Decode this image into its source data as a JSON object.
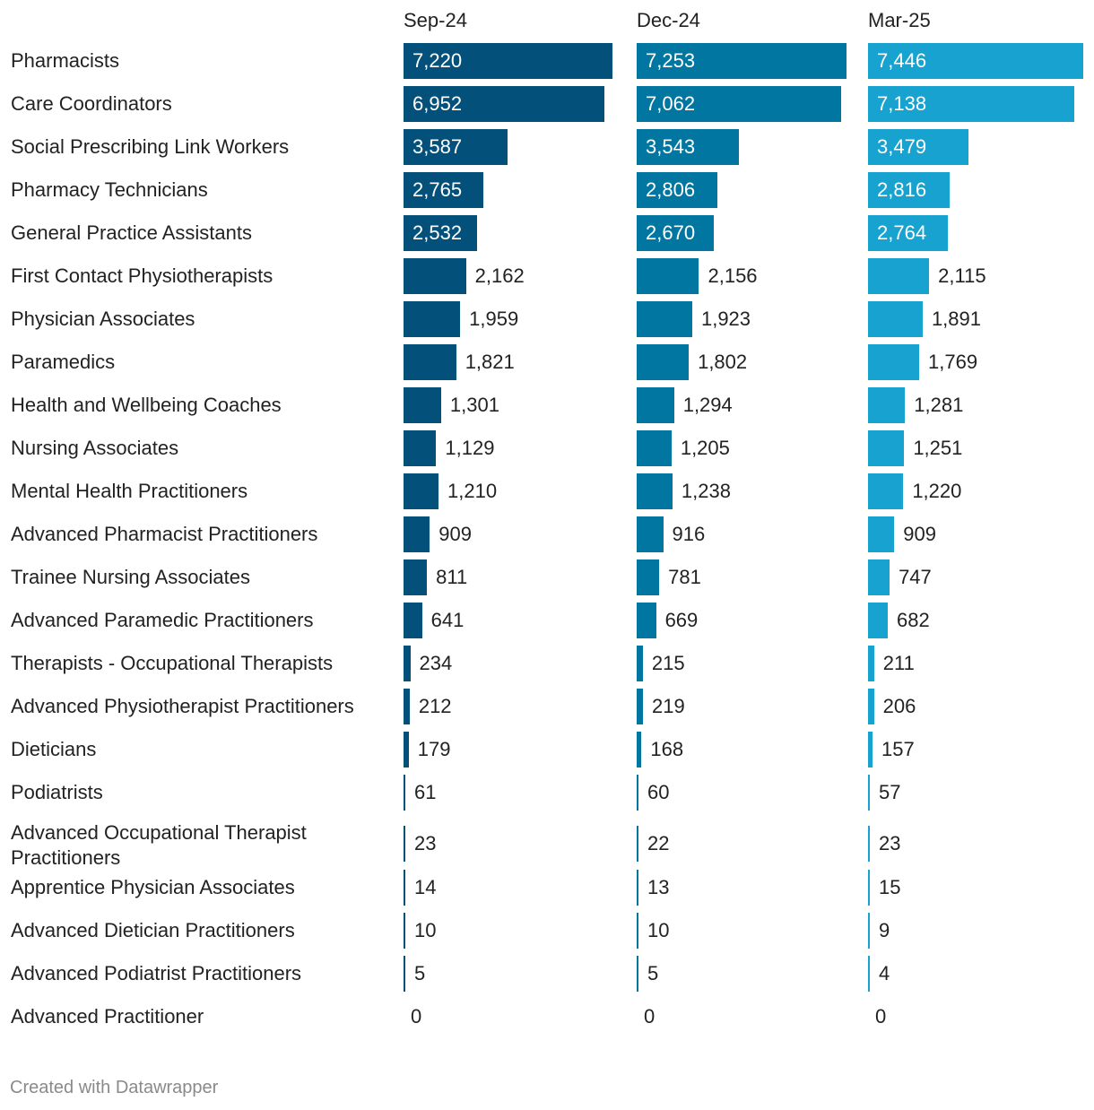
{
  "chart_data": {
    "type": "bar",
    "orientation": "horizontal",
    "categories": [
      "Pharmacists",
      "Care Coordinators",
      "Social Prescribing Link Workers",
      "Pharmacy Technicians",
      "General Practice Assistants",
      "First Contact Physiotherapists",
      "Physician Associates",
      "Paramedics",
      "Health and Wellbeing Coaches",
      "Nursing Associates",
      "Mental Health Practitioners",
      "Advanced Pharmacist Practitioners",
      "Trainee Nursing Associates",
      "Advanced Paramedic Practitioners",
      "Therapists - Occupational Therapists",
      "Advanced Physiotherapist Practitioners",
      "Dieticians",
      "Podiatrists",
      "Advanced Occupational Therapist Practitioners",
      "Apprentice Physician Associates",
      "Advanced Dietician Practitioners",
      "Advanced Podiatrist Practitioners",
      "Advanced Practitioner"
    ],
    "series": [
      {
        "name": "Sep-24",
        "color": "#03517b",
        "values": [
          7220,
          6952,
          3587,
          2765,
          2532,
          2162,
          1959,
          1821,
          1301,
          1129,
          1210,
          909,
          811,
          641,
          234,
          212,
          179,
          61,
          23,
          14,
          10,
          5,
          0
        ]
      },
      {
        "name": "Dec-24",
        "color": "#0076a1",
        "values": [
          7253,
          7062,
          3543,
          2806,
          2670,
          2156,
          1923,
          1802,
          1294,
          1205,
          1238,
          916,
          781,
          669,
          215,
          219,
          168,
          60,
          22,
          13,
          10,
          5,
          0
        ]
      },
      {
        "name": "Mar-25",
        "color": "#17a2d0",
        "values": [
          7446,
          7138,
          3479,
          2816,
          2764,
          2115,
          1891,
          1769,
          1281,
          1251,
          1220,
          909,
          747,
          682,
          211,
          206,
          157,
          57,
          23,
          15,
          9,
          4,
          0
        ]
      }
    ],
    "xlim": [
      0,
      7446
    ],
    "legend": "column headers",
    "grid": false
  },
  "footer": {
    "credit": "Created with Datawrapper"
  }
}
